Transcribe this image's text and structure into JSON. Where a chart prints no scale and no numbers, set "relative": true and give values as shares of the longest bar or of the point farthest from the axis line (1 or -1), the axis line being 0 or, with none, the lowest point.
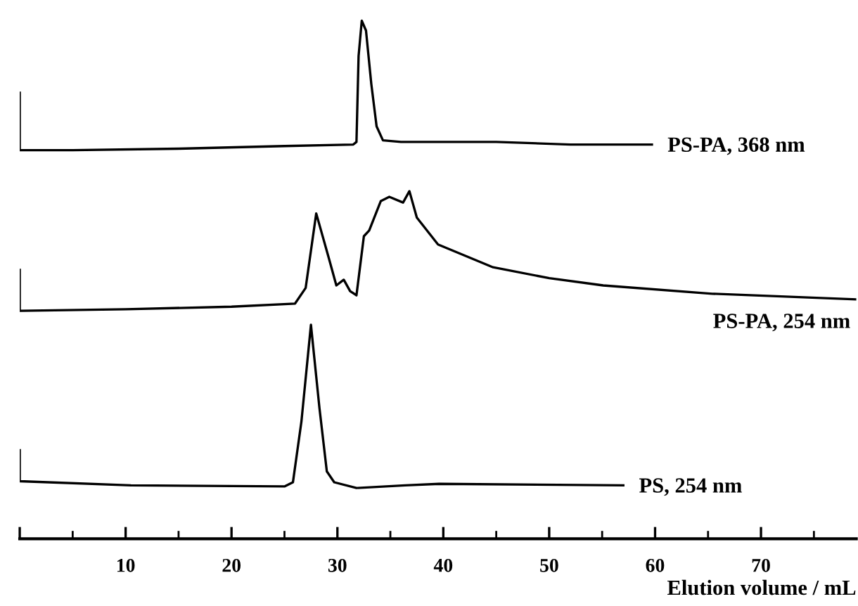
{
  "chart_data": {
    "type": "line",
    "relative": true,
    "xlabel": "Elution volume / mL",
    "xlim": [
      0,
      79
    ],
    "xticks": [
      {
        "value": 0,
        "label": null
      },
      10,
      20,
      30,
      40,
      50,
      60,
      70
    ],
    "grid": false,
    "legend": false,
    "marker": "none",
    "line_style": "solid",
    "series": [
      {
        "name": "PS-PA, 368 nm",
        "color": "#000000",
        "x": [
          0,
          0,
          5,
          15,
          25,
          31.5,
          31.8,
          32.0,
          32.3,
          32.7,
          33.2,
          33.7,
          34.3,
          36,
          45,
          52,
          59.7
        ],
        "values": [
          0.861,
          0.75,
          0.75,
          0.753,
          0.758,
          0.761,
          0.766,
          0.932,
          1.0,
          0.981,
          0.878,
          0.796,
          0.769,
          0.766,
          0.766,
          0.761,
          0.761
        ]
      },
      {
        "name": "PS-PA, 254 nm",
        "color": "#000000",
        "x": [
          0,
          0,
          10,
          20,
          26,
          27,
          28,
          29.2,
          29.9,
          30.6,
          31.2,
          31.8,
          32.5,
          33,
          34.1,
          34.9,
          36.2,
          36.8,
          37.5,
          39.5,
          44.7,
          50,
          55.1,
          65.4,
          79
        ],
        "values": [
          0.519,
          0.44,
          0.443,
          0.448,
          0.454,
          0.484,
          0.628,
          0.541,
          0.489,
          0.5,
          0.478,
          0.47,
          0.584,
          0.595,
          0.652,
          0.66,
          0.649,
          0.671,
          0.62,
          0.568,
          0.524,
          0.503,
          0.489,
          0.473,
          0.462
        ]
      },
      {
        "name": "PS, 254 nm",
        "color": "#000000",
        "x": [
          0,
          0,
          10.5,
          25,
          25.8,
          26.6,
          27.5,
          28.3,
          29,
          29.7,
          31.8,
          36.4,
          39.6,
          57
        ],
        "values": [
          0.171,
          0.111,
          0.103,
          0.101,
          0.109,
          0.226,
          0.413,
          0.253,
          0.13,
          0.109,
          0.098,
          0.103,
          0.106,
          0.103
        ]
      }
    ]
  }
}
